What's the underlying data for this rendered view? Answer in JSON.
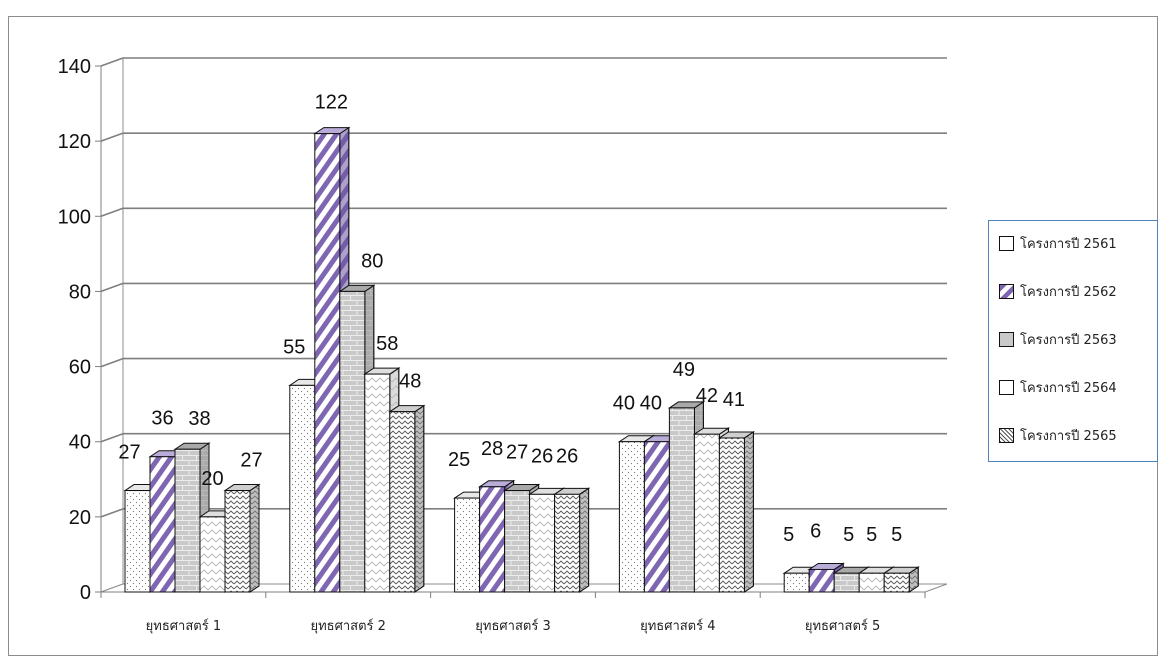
{
  "chart_data": {
    "type": "bar",
    "title": "",
    "xlabel": "",
    "ylabel": "",
    "ylim": [
      0,
      140
    ],
    "yticks": [
      0,
      20,
      40,
      60,
      80,
      100,
      120,
      140
    ],
    "grid": true,
    "legend_position": "right",
    "categories": [
      "ยุทธศาสตร์ 1",
      "ยุทธศาสตร์ 2",
      "ยุทธศาสตร์ 3",
      "ยุทธศาสตร์ 4",
      "ยุทธศาสตร์ 5"
    ],
    "series": [
      {
        "name": "โครงการปี 2561",
        "values": [
          27,
          55,
          25,
          40,
          5
        ],
        "pattern": "dots"
      },
      {
        "name": "โครงการปี 2562",
        "values": [
          36,
          122,
          28,
          40,
          6
        ],
        "pattern": "diagonal",
        "color": "#7f66b3"
      },
      {
        "name": "โครงการปี 2563",
        "values": [
          38,
          80,
          27,
          49,
          5
        ],
        "pattern": "brick",
        "color": "#c8c8c8"
      },
      {
        "name": "โครงการปี 2564",
        "values": [
          20,
          58,
          26,
          42,
          5
        ],
        "pattern": "zigzag"
      },
      {
        "name": "โครงการปี 2565",
        "values": [
          27,
          48,
          26,
          41,
          5
        ],
        "pattern": "dense-zigzag"
      }
    ]
  }
}
